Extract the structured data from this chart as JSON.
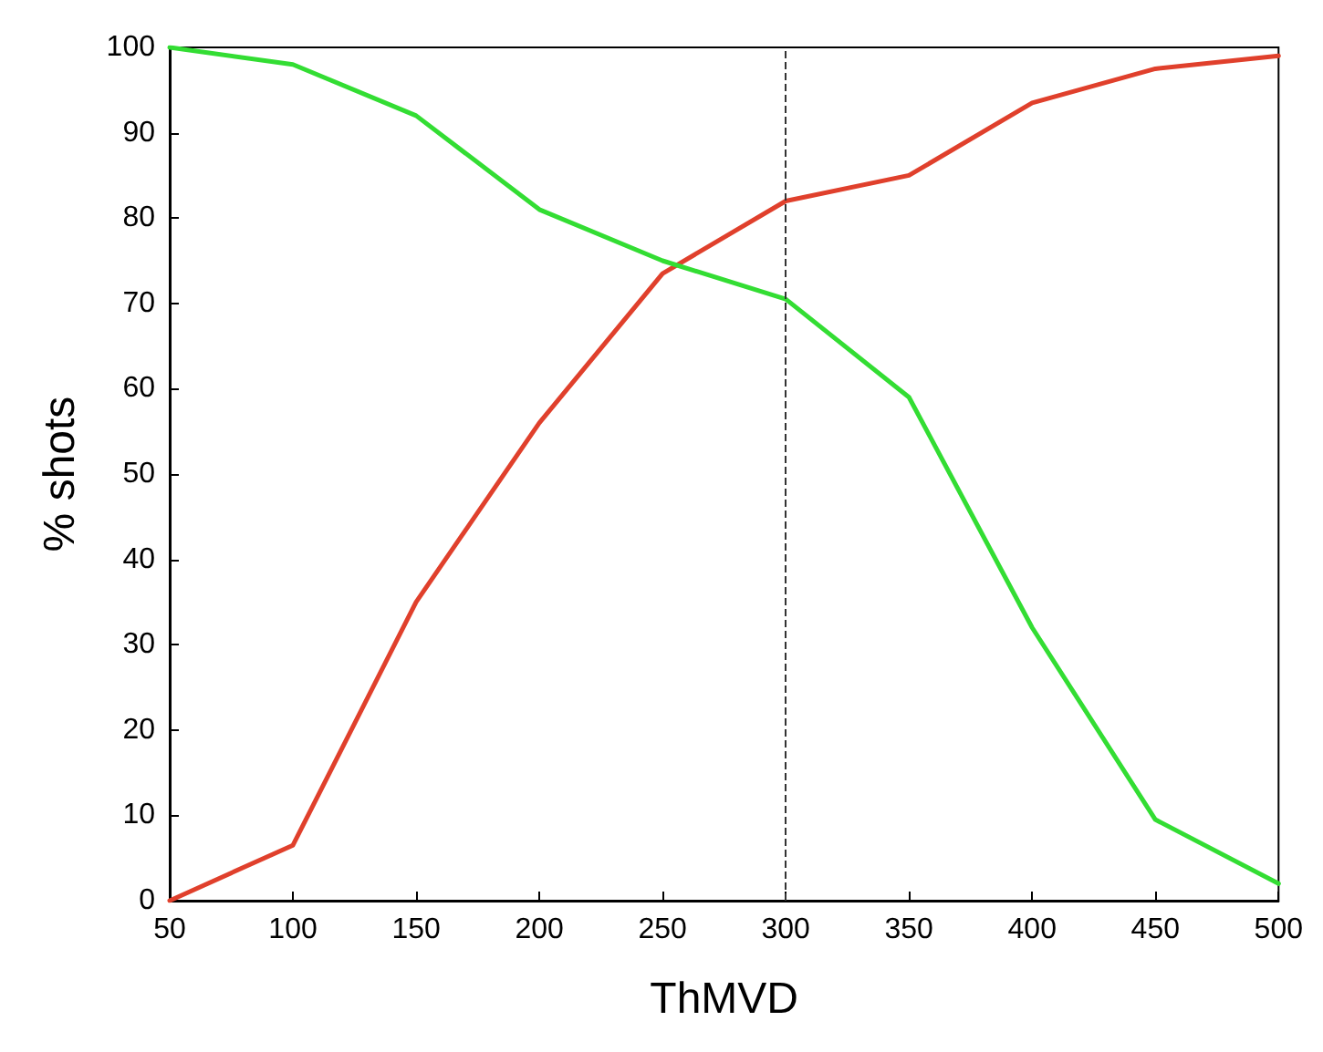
{
  "chart_data": {
    "type": "line",
    "xlabel": "ThMVD",
    "ylabel": "% shots",
    "x": [
      50,
      100,
      150,
      200,
      250,
      300,
      350,
      400,
      450,
      500
    ],
    "series": [
      {
        "color": "#e0402c",
        "values": [
          0,
          6.5,
          35,
          56,
          73.5,
          82,
          85,
          93.5,
          97.5,
          99
        ]
      },
      {
        "color": "#33dd33",
        "values": [
          100,
          98,
          92,
          81,
          75,
          70.5,
          59,
          32,
          9.5,
          2
        ]
      }
    ],
    "xlim": [
      50,
      500
    ],
    "xticks": [
      50,
      100,
      150,
      200,
      250,
      300,
      350,
      400,
      450,
      500
    ],
    "ylim": [
      0,
      100
    ],
    "yticks": [
      0,
      10,
      20,
      30,
      40,
      50,
      60,
      70,
      80,
      90,
      100
    ],
    "ref_lines": [
      {
        "axis": "x",
        "value": 300,
        "color": "#333333",
        "line_style": "dashed"
      }
    ],
    "grid": false,
    "marker": "none",
    "line_style": "solid"
  }
}
